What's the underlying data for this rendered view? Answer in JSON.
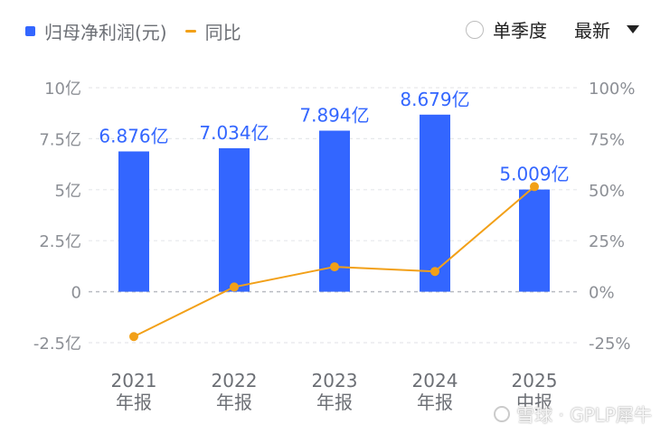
{
  "legend": {
    "bars_label": "归母净利润(元)",
    "line_label": "同比"
  },
  "controls": {
    "single_quarter_label": "单季度",
    "range_selected": "最新"
  },
  "watermark": {
    "text": "雪球 · GPLP犀牛"
  },
  "colors": {
    "bar": "#3366ff",
    "line": "#f2a018",
    "grid": "#e6e8eb",
    "axis_text": "#8c8f95",
    "label_text": "#3366ff"
  },
  "chart_data": {
    "type": "bar",
    "categories": [
      "2021\n年报",
      "2022\n年报",
      "2023\n年报",
      "2024\n年报",
      "2025\n中报"
    ],
    "series": [
      {
        "name": "归母净利润(元)",
        "values": [
          6.876,
          7.034,
          7.894,
          8.679,
          5.009
        ],
        "labels": [
          "6.876亿",
          "7.034亿",
          "7.894亿",
          "8.679亿",
          "5.009亿"
        ]
      },
      {
        "name": "同比",
        "type": "line",
        "values": [
          -22,
          2.3,
          12.2,
          9.9,
          51.5
        ]
      }
    ],
    "left_axis": {
      "ylim": [
        -2.5,
        10
      ],
      "ticks": [
        10,
        7.5,
        5,
        2.5,
        0,
        -2.5
      ],
      "tick_labels": [
        "10亿",
        "7.5亿",
        "5亿",
        "2.5亿",
        "0",
        "-2.5亿"
      ]
    },
    "right_axis": {
      "ylim": [
        -25,
        100
      ],
      "ticks": [
        100,
        75,
        50,
        25,
        0,
        -25
      ],
      "tick_labels": [
        "100%",
        "75%",
        "50%",
        "25%",
        "0%",
        "-25%"
      ]
    },
    "grid": true
  }
}
